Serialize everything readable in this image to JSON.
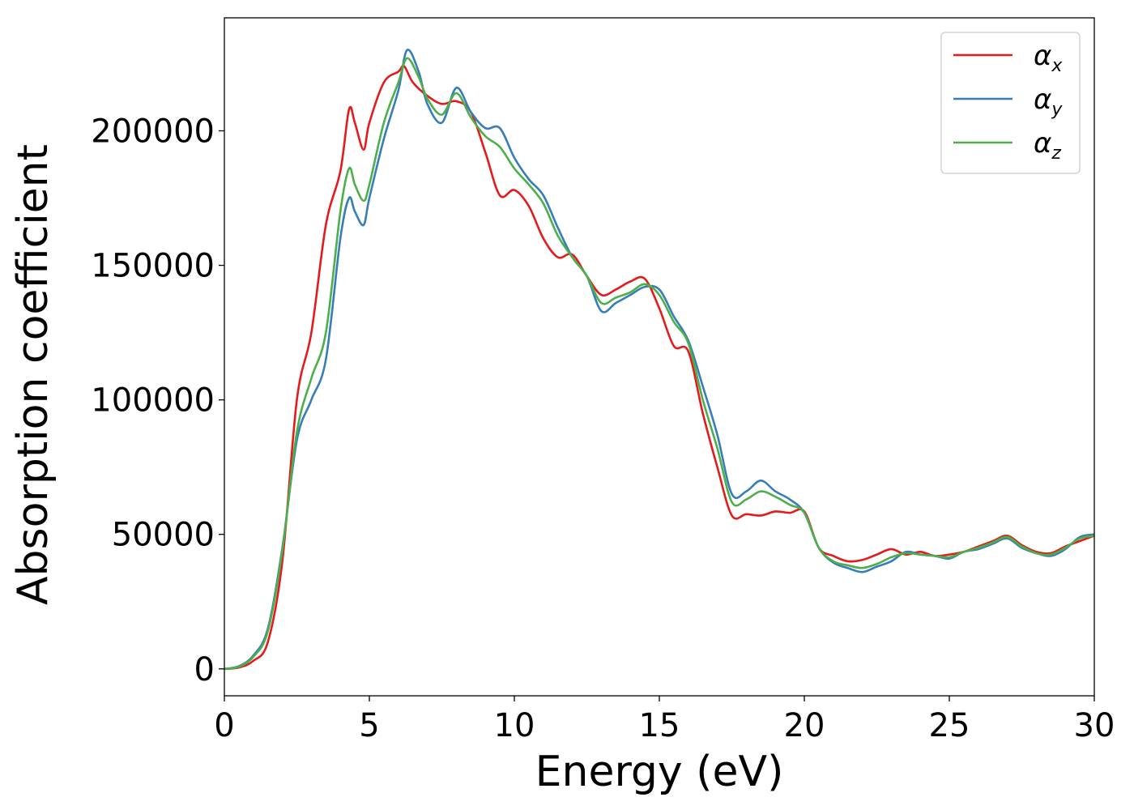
{
  "chart_data": {
    "type": "line",
    "xlabel": "Energy (eV)",
    "ylabel": "Absorption coefficient",
    "xlim": [
      0,
      30
    ],
    "ylim": [
      -10000,
      242000
    ],
    "xticks": [
      0,
      5,
      10,
      15,
      20,
      25,
      30
    ],
    "xtick_labels": [
      "0",
      "5",
      "10",
      "15",
      "20",
      "25",
      "30"
    ],
    "yticks": [
      0,
      50000,
      100000,
      150000,
      200000
    ],
    "ytick_labels": [
      "0",
      "50000",
      "100000",
      "150000",
      "200000"
    ],
    "grid": false,
    "legend_position": "top-right",
    "series": [
      {
        "name": "α_x",
        "legend_symbol": "α",
        "legend_sub": "x",
        "color": "#e41a1c",
        "points": [
          [
            0,
            0
          ],
          [
            0.5,
            500
          ],
          [
            1,
            3000
          ],
          [
            1.5,
            10000
          ],
          [
            2,
            40000
          ],
          [
            2.5,
            100000
          ],
          [
            3,
            125000
          ],
          [
            3.5,
            165000
          ],
          [
            4,
            185000
          ],
          [
            4.3,
            208000
          ],
          [
            4.5,
            203000
          ],
          [
            4.8,
            193000
          ],
          [
            5,
            203000
          ],
          [
            5.5,
            218000
          ],
          [
            6,
            222000
          ],
          [
            6.2,
            224000
          ],
          [
            6.5,
            218000
          ],
          [
            7,
            213000
          ],
          [
            7.5,
            210000
          ],
          [
            8,
            211000
          ],
          [
            8.5,
            207000
          ],
          [
            9,
            192000
          ],
          [
            9.5,
            176000
          ],
          [
            10,
            178000
          ],
          [
            10.5,
            172000
          ],
          [
            11,
            160000
          ],
          [
            11.5,
            153000
          ],
          [
            12,
            154000
          ],
          [
            12.5,
            146000
          ],
          [
            13,
            139000
          ],
          [
            13.5,
            141000
          ],
          [
            14,
            144000
          ],
          [
            14.5,
            145000
          ],
          [
            15,
            134000
          ],
          [
            15.5,
            120000
          ],
          [
            16,
            118000
          ],
          [
            16.5,
            95000
          ],
          [
            17,
            75000
          ],
          [
            17.5,
            57000
          ],
          [
            18,
            57500
          ],
          [
            18.5,
            57000
          ],
          [
            19,
            58500
          ],
          [
            19.5,
            58000
          ],
          [
            20,
            58500
          ],
          [
            20.5,
            45000
          ],
          [
            21,
            42000
          ],
          [
            21.5,
            40000
          ],
          [
            22,
            40500
          ],
          [
            22.5,
            42500
          ],
          [
            23,
            44500
          ],
          [
            23.5,
            42500
          ],
          [
            24,
            43500
          ],
          [
            24.5,
            42000
          ],
          [
            25,
            42500
          ],
          [
            25.5,
            43500
          ],
          [
            26,
            45500
          ],
          [
            26.5,
            47500
          ],
          [
            27,
            49500
          ],
          [
            27.5,
            46000
          ],
          [
            28,
            43500
          ],
          [
            28.5,
            43000
          ],
          [
            29,
            45500
          ],
          [
            29.5,
            47500
          ],
          [
            30,
            49500
          ]
        ]
      },
      {
        "name": "α_y",
        "legend_symbol": "α",
        "legend_sub": "y",
        "color": "#377eb8",
        "points": [
          [
            0,
            0
          ],
          [
            0.5,
            1000
          ],
          [
            1,
            5000
          ],
          [
            1.5,
            15000
          ],
          [
            2,
            45000
          ],
          [
            2.5,
            85000
          ],
          [
            3,
            100000
          ],
          [
            3.5,
            115000
          ],
          [
            4,
            160000
          ],
          [
            4.3,
            175000
          ],
          [
            4.5,
            170000
          ],
          [
            4.8,
            165000
          ],
          [
            5,
            175000
          ],
          [
            5.5,
            197000
          ],
          [
            6,
            215000
          ],
          [
            6.3,
            230000
          ],
          [
            6.7,
            222000
          ],
          [
            7,
            210000
          ],
          [
            7.5,
            203000
          ],
          [
            8,
            216000
          ],
          [
            8.5,
            207000
          ],
          [
            9,
            201000
          ],
          [
            9.5,
            201000
          ],
          [
            10,
            190000
          ],
          [
            10.5,
            182000
          ],
          [
            11,
            176000
          ],
          [
            11.5,
            164000
          ],
          [
            12,
            153000
          ],
          [
            12.5,
            146000
          ],
          [
            13,
            133000
          ],
          [
            13.5,
            136000
          ],
          [
            14,
            139000
          ],
          [
            14.5,
            142000
          ],
          [
            15,
            141000
          ],
          [
            15.5,
            131000
          ],
          [
            16,
            122000
          ],
          [
            16.5,
            105000
          ],
          [
            17,
            87000
          ],
          [
            17.5,
            65000
          ],
          [
            18,
            66000
          ],
          [
            18.5,
            70000
          ],
          [
            19,
            66000
          ],
          [
            19.5,
            63000
          ],
          [
            20,
            58000
          ],
          [
            20.5,
            45000
          ],
          [
            21,
            39500
          ],
          [
            21.5,
            37500
          ],
          [
            22,
            36000
          ],
          [
            22.5,
            38000
          ],
          [
            23,
            40000
          ],
          [
            23.5,
            43500
          ],
          [
            24,
            42500
          ],
          [
            24.5,
            42000
          ],
          [
            25,
            41000
          ],
          [
            25.5,
            43500
          ],
          [
            26,
            44500
          ],
          [
            26.5,
            46500
          ],
          [
            27,
            48500
          ],
          [
            27.5,
            45000
          ],
          [
            28,
            43000
          ],
          [
            28.5,
            42000
          ],
          [
            29,
            44500
          ],
          [
            29.5,
            49000
          ],
          [
            30,
            50000
          ]
        ]
      },
      {
        "name": "α_z",
        "legend_symbol": "α",
        "legend_sub": "z",
        "color": "#4daf4a",
        "points": [
          [
            0,
            0
          ],
          [
            0.5,
            800
          ],
          [
            1,
            4500
          ],
          [
            1.5,
            14000
          ],
          [
            2,
            44000
          ],
          [
            2.5,
            88000
          ],
          [
            3,
            108000
          ],
          [
            3.5,
            125000
          ],
          [
            4,
            170000
          ],
          [
            4.3,
            186000
          ],
          [
            4.5,
            180000
          ],
          [
            4.8,
            174000
          ],
          [
            5,
            180000
          ],
          [
            5.5,
            203000
          ],
          [
            6,
            218000
          ],
          [
            6.3,
            227000
          ],
          [
            6.7,
            220000
          ],
          [
            7,
            212000
          ],
          [
            7.5,
            206000
          ],
          [
            8,
            214000
          ],
          [
            8.5,
            205000
          ],
          [
            9,
            198000
          ],
          [
            9.5,
            194000
          ],
          [
            10,
            186000
          ],
          [
            10.5,
            180000
          ],
          [
            11,
            173000
          ],
          [
            11.5,
            161000
          ],
          [
            12,
            153000
          ],
          [
            12.5,
            146000
          ],
          [
            13,
            136000
          ],
          [
            13.5,
            138000
          ],
          [
            14,
            140000
          ],
          [
            14.5,
            143000
          ],
          [
            15,
            139000
          ],
          [
            15.5,
            129000
          ],
          [
            16,
            121000
          ],
          [
            16.5,
            100000
          ],
          [
            17,
            82000
          ],
          [
            17.5,
            62000
          ],
          [
            18,
            63000
          ],
          [
            18.5,
            66000
          ],
          [
            19,
            64000
          ],
          [
            19.5,
            61000
          ],
          [
            20,
            58000
          ],
          [
            20.5,
            45000
          ],
          [
            21,
            40000
          ],
          [
            21.5,
            38500
          ],
          [
            22,
            37500
          ],
          [
            22.5,
            39000
          ],
          [
            23,
            41500
          ],
          [
            23.5,
            43000
          ],
          [
            24,
            42500
          ],
          [
            24.5,
            42000
          ],
          [
            25,
            41500
          ],
          [
            25.5,
            43500
          ],
          [
            26,
            45000
          ],
          [
            26.5,
            47000
          ],
          [
            27,
            49000
          ],
          [
            27.5,
            45500
          ],
          [
            28,
            43000
          ],
          [
            28.5,
            42500
          ],
          [
            29,
            45000
          ],
          [
            29.5,
            48500
          ],
          [
            30,
            49500
          ]
        ]
      }
    ]
  }
}
